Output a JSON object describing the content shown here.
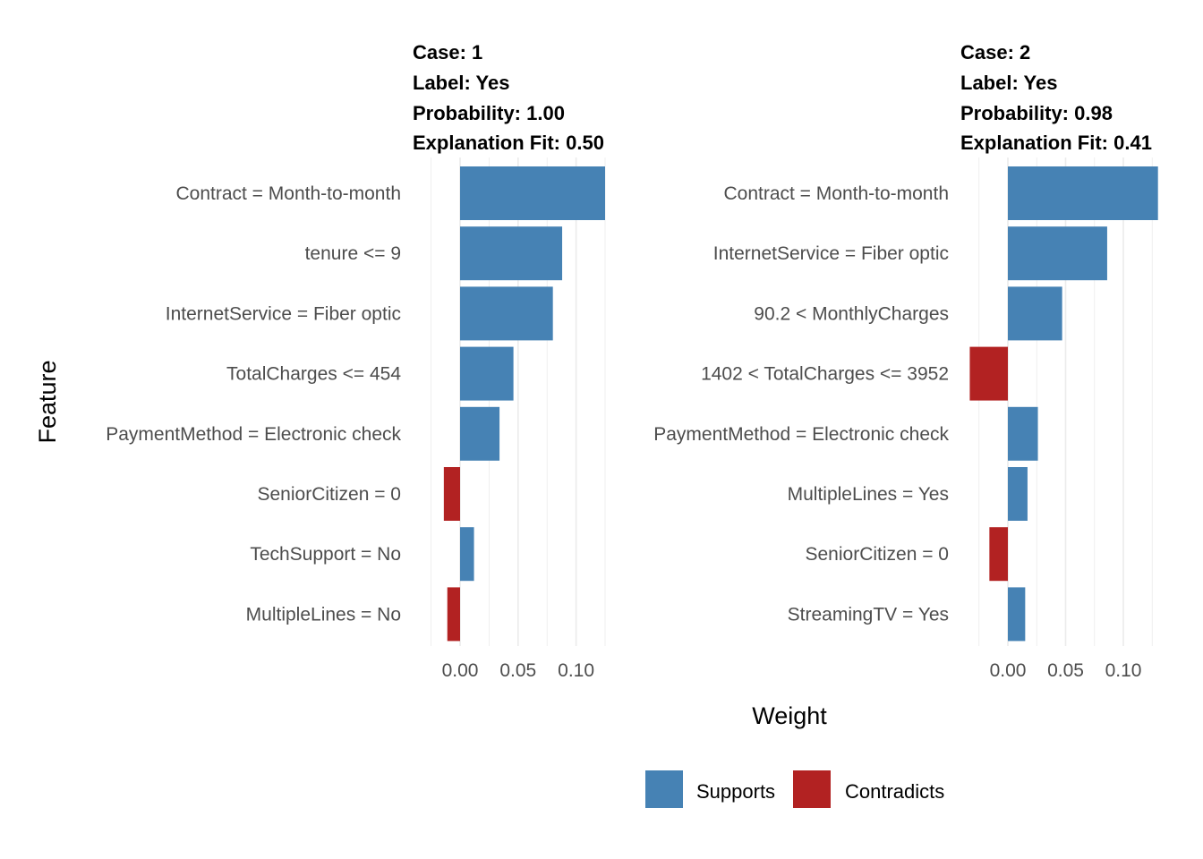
{
  "chart_data": {
    "type": "bar",
    "orientation": "horizontal",
    "xlabel": "Weight",
    "ylabel": "Feature",
    "xticks": [
      "0.00",
      "0.05",
      "0.10"
    ],
    "xtick_values": [
      0.0,
      0.05,
      0.1
    ],
    "xlim": [
      -0.038,
      0.131
    ],
    "grid": true,
    "legend": {
      "placement": "bottom",
      "entries": [
        {
          "name": "Supports",
          "color": "#4682B4"
        },
        {
          "name": "Contradicts",
          "color": "#B22222"
        }
      ]
    },
    "panels": [
      {
        "case": "Case: 1",
        "label": "Label: Yes",
        "probability": "Probability: 1.00",
        "fit": "Explanation Fit: 0.50",
        "features": [
          {
            "name": "Contract = Month-to-month",
            "weight": 0.125,
            "type": "Supports"
          },
          {
            "name": "tenure <= 9",
            "weight": 0.088,
            "type": "Supports"
          },
          {
            "name": "InternetService = Fiber optic",
            "weight": 0.08,
            "type": "Supports"
          },
          {
            "name": "TotalCharges <= 454",
            "weight": 0.046,
            "type": "Supports"
          },
          {
            "name": "PaymentMethod = Electronic check",
            "weight": 0.034,
            "type": "Supports"
          },
          {
            "name": "SeniorCitizen = 0",
            "weight": -0.014,
            "type": "Contradicts"
          },
          {
            "name": "TechSupport = No",
            "weight": 0.012,
            "type": "Supports"
          },
          {
            "name": "MultipleLines = No",
            "weight": -0.011,
            "type": "Contradicts"
          }
        ]
      },
      {
        "case": "Case: 2",
        "label": "Label: Yes",
        "probability": "Probability: 0.98",
        "fit": "Explanation Fit: 0.41",
        "features": [
          {
            "name": "Contract = Month-to-month",
            "weight": 0.13,
            "type": "Supports"
          },
          {
            "name": "InternetService = Fiber optic",
            "weight": 0.086,
            "type": "Supports"
          },
          {
            "name": "90.2 < MonthlyCharges",
            "weight": 0.047,
            "type": "Supports"
          },
          {
            "name": "1402 < TotalCharges <= 3952",
            "weight": -0.033,
            "type": "Contradicts"
          },
          {
            "name": "PaymentMethod = Electronic check",
            "weight": 0.026,
            "type": "Supports"
          },
          {
            "name": "MultipleLines = Yes",
            "weight": 0.017,
            "type": "Supports"
          },
          {
            "name": "SeniorCitizen = 0",
            "weight": -0.016,
            "type": "Contradicts"
          },
          {
            "name": "StreamingTV = Yes",
            "weight": 0.015,
            "type": "Supports"
          }
        ]
      }
    ]
  }
}
